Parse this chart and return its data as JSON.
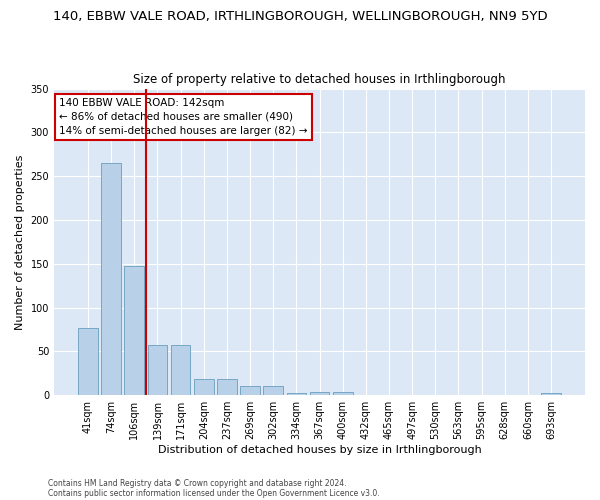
{
  "title_line1": "140, EBBW VALE ROAD, IRTHLINGBOROUGH, WELLINGBOROUGH, NN9 5YD",
  "title_line2": "Size of property relative to detached houses in Irthlingborough",
  "xlabel": "Distribution of detached houses by size in Irthlingborough",
  "ylabel": "Number of detached properties",
  "categories": [
    "41sqm",
    "74sqm",
    "106sqm",
    "139sqm",
    "171sqm",
    "204sqm",
    "237sqm",
    "269sqm",
    "302sqm",
    "334sqm",
    "367sqm",
    "400sqm",
    "432sqm",
    "465sqm",
    "497sqm",
    "530sqm",
    "563sqm",
    "595sqm",
    "628sqm",
    "660sqm",
    "693sqm"
  ],
  "values": [
    77,
    265,
    147,
    57,
    57,
    19,
    19,
    10,
    10,
    3,
    4,
    4,
    0,
    0,
    0,
    0,
    0,
    0,
    0,
    0,
    3
  ],
  "bar_color": "#b8d0e8",
  "bar_edge_color": "#6a9fc0",
  "vline_color": "#cc0000",
  "vline_x_index": 3,
  "annotation_line1": "140 EBBW VALE ROAD: 142sqm",
  "annotation_line2": "← 86% of detached houses are smaller (490)",
  "annotation_line3": "14% of semi-detached houses are larger (82) →",
  "annotation_box_color": "#ffffff",
  "annotation_box_edge": "#cc0000",
  "ylim": [
    0,
    350
  ],
  "yticks": [
    0,
    50,
    100,
    150,
    200,
    250,
    300,
    350
  ],
  "background_color": "#dce8f5",
  "footer_line1": "Contains HM Land Registry data © Crown copyright and database right 2024.",
  "footer_line2": "Contains public sector information licensed under the Open Government Licence v3.0.",
  "title_fontsize": 9.5,
  "subtitle_fontsize": 8.5,
  "axis_label_fontsize": 8,
  "tick_fontsize": 7,
  "annotation_fontsize": 7.5
}
